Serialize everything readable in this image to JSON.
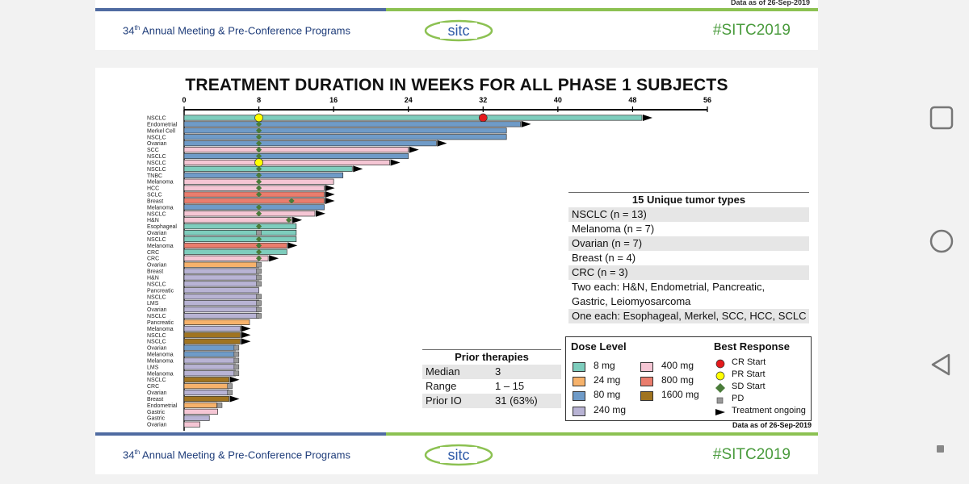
{
  "header": {
    "meeting_prefix": "34",
    "meeting_sup": "th",
    "meeting_text": "Annual Meeting & Pre-Conference Programs",
    "logo_text": "sitc",
    "hashtag": "#SITC2019",
    "data_as_of": "Data as of 26-Sep-2019"
  },
  "footer": {
    "data_as_of": "Data as of 26-Sep-2019"
  },
  "chart_data": {
    "type": "bar",
    "orientation": "horizontal",
    "title": "TREATMENT DURATION IN WEEKS FOR ALL PHASE 1 SUBJECTS",
    "xlim": [
      0,
      56
    ],
    "xticks": [
      0,
      8,
      16,
      24,
      32,
      40,
      48,
      56
    ],
    "colors": {
      "8 mg": "#7ecdbd",
      "24 mg": "#f6b26b",
      "80 mg": "#6f9bc8",
      "240 mg": "#b8b3d4",
      "400 mg": "#f5c6d4",
      "800 mg": "#ea7d6d",
      "1600 mg": "#a07420"
    },
    "subjects": [
      {
        "label": "NSCLC",
        "dose": "8 mg",
        "weeks": 49.0,
        "ongoing": true,
        "markers": [
          {
            "type": "PR",
            "week": 8
          },
          {
            "type": "CR",
            "week": 32
          }
        ]
      },
      {
        "label": "Endometrial",
        "dose": "80 mg",
        "weeks": 36.0,
        "ongoing": true,
        "markers": [
          {
            "type": "SD",
            "week": 8
          }
        ]
      },
      {
        "label": "Merkel Cell",
        "dose": "80 mg",
        "weeks": 34.5,
        "ongoing": false,
        "markers": [
          {
            "type": "SD",
            "week": 8
          }
        ]
      },
      {
        "label": "NSCLC",
        "dose": "80 mg",
        "weeks": 34.5,
        "ongoing": false,
        "markers": [
          {
            "type": "SD",
            "week": 8
          }
        ]
      },
      {
        "label": "Ovarian",
        "dose": "80 mg",
        "weeks": 27.0,
        "ongoing": true,
        "markers": [
          {
            "type": "SD",
            "week": 8
          }
        ]
      },
      {
        "label": "SCC",
        "dose": "400 mg",
        "weeks": 24.0,
        "ongoing": true,
        "markers": [
          {
            "type": "SD",
            "week": 8
          }
        ]
      },
      {
        "label": "NSCLC",
        "dose": "80 mg",
        "weeks": 24.0,
        "ongoing": false,
        "markers": [
          {
            "type": "SD",
            "week": 8
          }
        ]
      },
      {
        "label": "NSCLC",
        "dose": "400 mg",
        "weeks": 22.0,
        "ongoing": true,
        "markers": [
          {
            "type": "PR",
            "week": 8
          }
        ]
      },
      {
        "label": "NSCLC",
        "dose": "8 mg",
        "weeks": 18.0,
        "ongoing": true,
        "markers": [
          {
            "type": "SD",
            "week": 8
          }
        ]
      },
      {
        "label": "TNBC",
        "dose": "80 mg",
        "weeks": 17.0,
        "ongoing": false,
        "markers": [
          {
            "type": "SD",
            "week": 8
          }
        ]
      },
      {
        "label": "Melanoma",
        "dose": "400 mg",
        "weeks": 16.0,
        "ongoing": false,
        "markers": [
          {
            "type": "SD",
            "week": 8
          }
        ]
      },
      {
        "label": "HCC",
        "dose": "400 mg",
        "weeks": 15.0,
        "ongoing": true,
        "markers": [
          {
            "type": "SD",
            "week": 8
          }
        ]
      },
      {
        "label": "SCLC",
        "dose": "800 mg",
        "weeks": 15.0,
        "ongoing": true,
        "markers": [
          {
            "type": "SD",
            "week": 8
          }
        ]
      },
      {
        "label": "Breast",
        "dose": "800 mg",
        "weeks": 15.0,
        "ongoing": true,
        "markers": [
          {
            "type": "SD",
            "week": 11.5
          }
        ]
      },
      {
        "label": "Melanoma",
        "dose": "80 mg",
        "weeks": 15.0,
        "ongoing": false,
        "markers": [
          {
            "type": "SD",
            "week": 8
          }
        ]
      },
      {
        "label": "NSCLC",
        "dose": "400 mg",
        "weeks": 14.0,
        "ongoing": true,
        "markers": [
          {
            "type": "SD",
            "week": 8
          }
        ]
      },
      {
        "label": "H&N",
        "dose": "400 mg",
        "weeks": 11.5,
        "ongoing": true,
        "markers": [
          {
            "type": "SD",
            "week": 11.2
          }
        ]
      },
      {
        "label": "Esophageal",
        "dose": "8 mg",
        "weeks": 12.0,
        "ongoing": false,
        "markers": [
          {
            "type": "SD",
            "week": 8
          }
        ]
      },
      {
        "label": "Ovarian",
        "dose": "8 mg",
        "weeks": 12.0,
        "ongoing": false,
        "markers": [
          {
            "type": "PD",
            "week": 8
          }
        ]
      },
      {
        "label": "NSCLC",
        "dose": "8 mg",
        "weeks": 12.0,
        "ongoing": false,
        "markers": [
          {
            "type": "SD",
            "week": 8
          }
        ]
      },
      {
        "label": "Melanoma",
        "dose": "800 mg",
        "weeks": 11.0,
        "ongoing": true,
        "markers": [
          {
            "type": "SD",
            "week": 8
          }
        ]
      },
      {
        "label": "CRC",
        "dose": "8 mg",
        "weeks": 11.0,
        "ongoing": false,
        "markers": [
          {
            "type": "SD",
            "week": 8
          }
        ]
      },
      {
        "label": "CRC",
        "dose": "400 mg",
        "weeks": 9.0,
        "ongoing": true,
        "markers": [
          {
            "type": "SD",
            "week": 8
          }
        ]
      },
      {
        "label": "Ovarian",
        "dose": "24 mg",
        "weeks": 8.0,
        "ongoing": false,
        "markers": [
          {
            "type": "PD",
            "week": 8
          }
        ]
      },
      {
        "label": "Breast",
        "dose": "240 mg",
        "weeks": 8.0,
        "ongoing": false,
        "markers": [
          {
            "type": "PD",
            "week": 8
          }
        ]
      },
      {
        "label": "H&N",
        "dose": "240 mg",
        "weeks": 8.0,
        "ongoing": false,
        "markers": [
          {
            "type": "PD",
            "week": 8
          }
        ]
      },
      {
        "label": "NSCLC",
        "dose": "240 mg",
        "weeks": 8.0,
        "ongoing": false,
        "markers": [
          {
            "type": "PD",
            "week": 8
          }
        ]
      },
      {
        "label": "Pancreatic",
        "dose": "240 mg",
        "weeks": 8.0,
        "ongoing": false,
        "markers": []
      },
      {
        "label": "NSCLC",
        "dose": "240 mg",
        "weeks": 8.0,
        "ongoing": false,
        "markers": [
          {
            "type": "PD",
            "week": 8
          }
        ]
      },
      {
        "label": "LMS",
        "dose": "240 mg",
        "weeks": 8.0,
        "ongoing": false,
        "markers": [
          {
            "type": "PD",
            "week": 8
          }
        ]
      },
      {
        "label": "Ovarian",
        "dose": "240 mg",
        "weeks": 8.0,
        "ongoing": false,
        "markers": [
          {
            "type": "PD",
            "week": 8
          }
        ]
      },
      {
        "label": "NSCLC",
        "dose": "240 mg",
        "weeks": 8.0,
        "ongoing": false,
        "markers": [
          {
            "type": "PD",
            "week": 8
          }
        ]
      },
      {
        "label": "Pancreatic",
        "dose": "24 mg",
        "weeks": 7.0,
        "ongoing": false,
        "markers": []
      },
      {
        "label": "Melanoma",
        "dose": "240 mg",
        "weeks": 6.0,
        "ongoing": true,
        "markers": []
      },
      {
        "label": "NSCLC",
        "dose": "1600 mg",
        "weeks": 6.0,
        "ongoing": true,
        "markers": []
      },
      {
        "label": "NSCLC",
        "dose": "1600 mg",
        "weeks": 6.0,
        "ongoing": true,
        "markers": []
      },
      {
        "label": "Ovarian",
        "dose": "80 mg",
        "weeks": 5.5,
        "ongoing": false,
        "markers": [
          {
            "type": "PD",
            "week": 5.6
          }
        ]
      },
      {
        "label": "Melanoma",
        "dose": "80 mg",
        "weeks": 5.5,
        "ongoing": false,
        "markers": [
          {
            "type": "PD",
            "week": 5.6
          }
        ]
      },
      {
        "label": "Melanoma",
        "dose": "240 mg",
        "weeks": 5.5,
        "ongoing": false,
        "markers": [
          {
            "type": "PD",
            "week": 5.6
          }
        ]
      },
      {
        "label": "LMS",
        "dose": "240 mg",
        "weeks": 5.5,
        "ongoing": false,
        "markers": [
          {
            "type": "PD",
            "week": 5.6
          }
        ]
      },
      {
        "label": "Melanoma",
        "dose": "240 mg",
        "weeks": 5.5,
        "ongoing": false,
        "markers": [
          {
            "type": "PD",
            "week": 5.6
          }
        ]
      },
      {
        "label": "NSCLC",
        "dose": "1600 mg",
        "weeks": 4.8,
        "ongoing": true,
        "markers": []
      },
      {
        "label": "CRC",
        "dose": "24 mg",
        "weeks": 4.8,
        "ongoing": false,
        "markers": [
          {
            "type": "PD",
            "week": 4.9
          }
        ]
      },
      {
        "label": "Ovarian",
        "dose": "240 mg",
        "weeks": 4.8,
        "ongoing": false,
        "markers": [
          {
            "type": "PD",
            "week": 4.9
          }
        ]
      },
      {
        "label": "Breast",
        "dose": "1600 mg",
        "weeks": 4.8,
        "ongoing": true,
        "markers": []
      },
      {
        "label": "Endometrial",
        "dose": "24 mg",
        "weeks": 3.5,
        "ongoing": false,
        "markers": [
          {
            "type": "PD",
            "week": 3.8
          }
        ]
      },
      {
        "label": "Gastric",
        "dose": "400 mg",
        "weeks": 3.6,
        "ongoing": false,
        "markers": []
      },
      {
        "label": "Gastric",
        "dose": "240 mg",
        "weeks": 2.7,
        "ongoing": false,
        "markers": []
      },
      {
        "label": "Ovarian",
        "dose": "400 mg",
        "weeks": 1.7,
        "ongoing": false,
        "markers": []
      }
    ]
  },
  "tumor_types": {
    "title": "15 Unique tumor types",
    "rows": [
      "NSCLC (n = 13)",
      "Melanoma (n = 7)",
      "Ovarian (n = 7)",
      "Breast (n = 4)",
      "CRC (n = 3)",
      "Two each: H&N, Endometrial, Pancreatic,",
      "Gastric, Leiomyosarcoma",
      "One each: Esophageal, Merkel, SCC, HCC, SCLC"
    ]
  },
  "prior_therapies": {
    "title": "Prior therapies",
    "rows": [
      {
        "label": "Median",
        "value": "3"
      },
      {
        "label": "Range",
        "value": "1 – 15"
      },
      {
        "label": "Prior IO",
        "value": "31 (63%)"
      }
    ]
  },
  "legend": {
    "dose_title": "Dose Level",
    "response_title": "Best Response",
    "doses": [
      "8 mg",
      "24 mg",
      "80 mg",
      "240 mg",
      "400 mg",
      "800 mg",
      "1600 mg"
    ],
    "responses": [
      "CR Start",
      "PR Start",
      "SD Start",
      "PD",
      "Treatment ongoing"
    ],
    "response_colors": {
      "CR": "#e41a1c",
      "PR": "#ffff00",
      "SD": "#4a7c3a",
      "PD": "#999999"
    }
  }
}
